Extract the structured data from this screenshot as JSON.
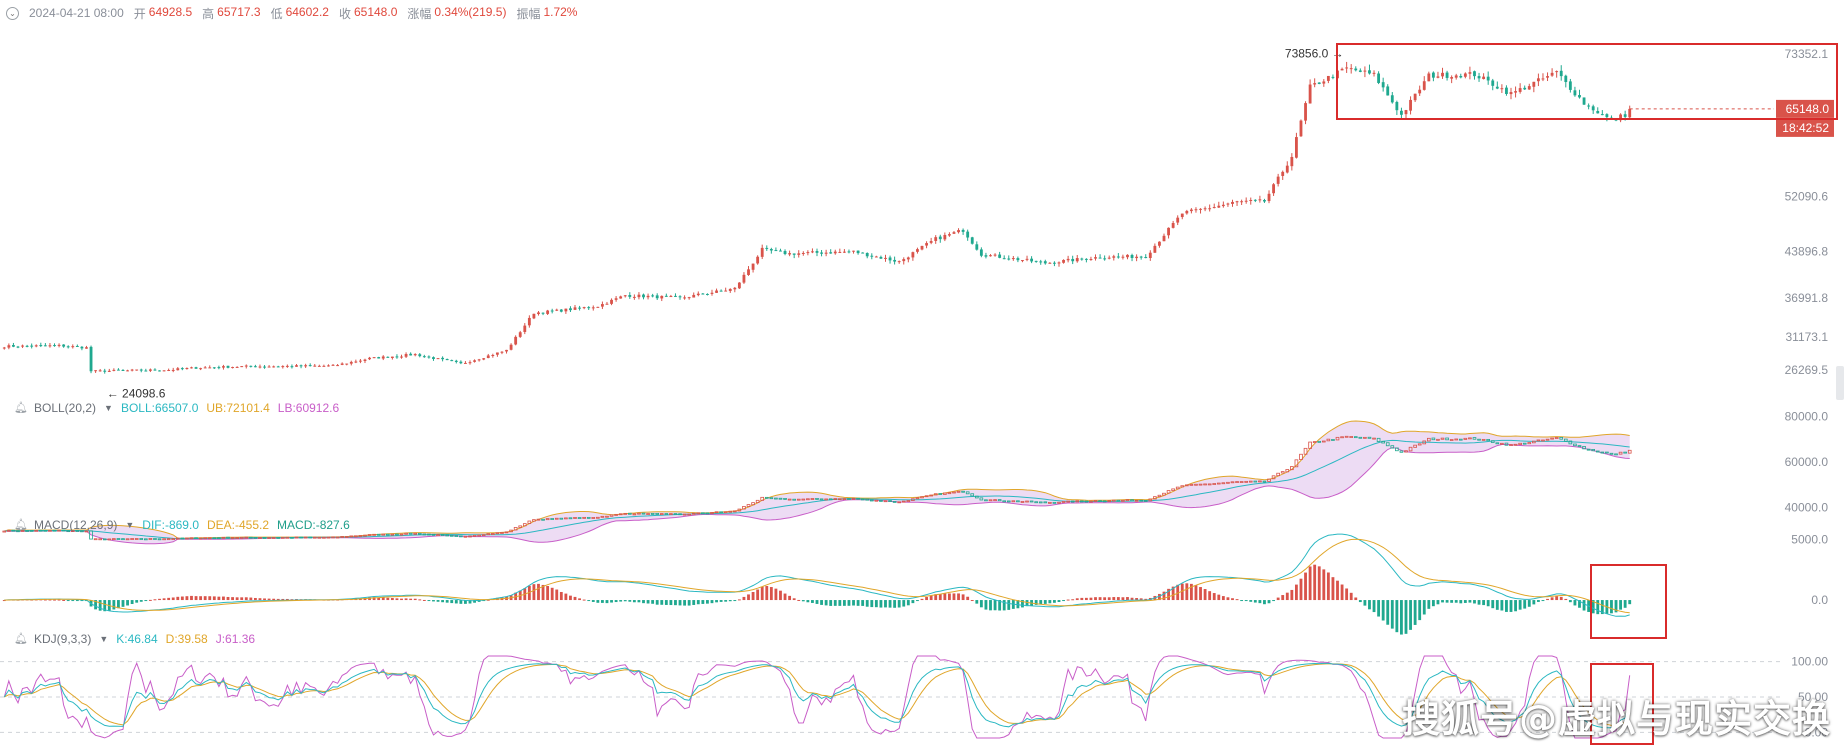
{
  "header": {
    "datetime": "2024-04-21 08:00",
    "open_label": "开",
    "open": "64928.5",
    "high_label": "高",
    "high": "65717.3",
    "low_label": "低",
    "low": "64602.2",
    "close_label": "收",
    "close": "65148.0",
    "change_label": "涨幅",
    "change": "0.34%(219.5)",
    "amplitude_label": "振幅",
    "amplitude": "1.72%"
  },
  "indicators": {
    "boll": {
      "name": "BOLL(20,2)",
      "mid": "BOLL:66507.0",
      "ub": "UB:72101.4",
      "lb": "LB:60912.6",
      "colors": {
        "mid": "#2bb8c2",
        "ub": "#e0a62a",
        "lb": "#c85ec8"
      }
    },
    "macd": {
      "name": "MACD(12,26,9)",
      "dif": "DIF:-869.0",
      "dea": "DEA:-455.2",
      "macd": "MACD:-827.6",
      "colors": {
        "dif": "#2bb8c2",
        "dea": "#e0a62a",
        "macd": "#1f9e8a"
      }
    },
    "kdj": {
      "name": "KDJ(9,3,3)",
      "k": "K:46.84",
      "d": "D:39.58",
      "j": "J:61.36",
      "colors": {
        "k": "#2bb8c2",
        "d": "#e0a62a",
        "j": "#c85ec8"
      }
    }
  },
  "colors": {
    "up": "#d9534a",
    "down": "#1fa88f",
    "highlight": "#d92b2b",
    "axis_text": "#8a8f99"
  },
  "chart_data": {
    "type": "candlestick",
    "main": {
      "y_ticks": [
        "73352.1",
        "52090.6",
        "43896.8",
        "36991.8",
        "31173.1",
        "26269.5"
      ],
      "ylim": [
        23000,
        76000
      ],
      "annotations": {
        "high_label": "73856.0",
        "low_label": "24098.6"
      },
      "last_price": "65148.0",
      "countdown": "18:42:52",
      "close_anchors": [
        [
          0,
          29800
        ],
        [
          12,
          29900
        ],
        [
          18,
          29600
        ],
        [
          19,
          26100
        ],
        [
          36,
          26300
        ],
        [
          42,
          26600
        ],
        [
          52,
          26800
        ],
        [
          72,
          26900
        ],
        [
          80,
          28000
        ],
        [
          90,
          28600
        ],
        [
          100,
          27200
        ],
        [
          110,
          29200
        ],
        [
          116,
          34800
        ],
        [
          120,
          35000
        ],
        [
          130,
          35800
        ],
        [
          136,
          37400
        ],
        [
          148,
          37000
        ],
        [
          160,
          38400
        ],
        [
          166,
          44200
        ],
        [
          172,
          43600
        ],
        [
          186,
          43900
        ],
        [
          196,
          42400
        ],
        [
          204,
          45800
        ],
        [
          210,
          47100
        ],
        [
          214,
          43500
        ],
        [
          228,
          42200
        ],
        [
          240,
          43100
        ],
        [
          250,
          43200
        ],
        [
          258,
          49600
        ],
        [
          270,
          51300
        ],
        [
          276,
          51400
        ],
        [
          282,
          58100
        ],
        [
          286,
          68400
        ],
        [
          294,
          71200
        ],
        [
          300,
          70200
        ],
        [
          306,
          64200
        ],
        [
          312,
          70100
        ],
        [
          322,
          70300
        ],
        [
          330,
          67400
        ],
        [
          340,
          70600
        ],
        [
          346,
          66000
        ],
        [
          352,
          63400
        ],
        [
          356,
          64600
        ]
      ]
    },
    "boll": {
      "y_ticks": [
        "80000.0",
        "60000.0",
        "40000.0"
      ],
      "ylim": [
        38000,
        82000
      ],
      "mid": 66507.0,
      "ub": 72101.4,
      "lb": 60912.6
    },
    "macd": {
      "y_ticks": [
        "5000.0",
        "0.0"
      ],
      "ylim": [
        -2300,
        5600
      ],
      "dif": -869.0,
      "dea": -455.2,
      "macd": -827.6
    },
    "kdj": {
      "y_ticks": [
        "100.00",
        "50.00",
        "0.00"
      ],
      "ylim": [
        -8,
        108
      ],
      "k": 46.84,
      "d": 39.58,
      "j": 61.36
    }
  },
  "watermark": "搜狐号@虚拟与现实交换"
}
